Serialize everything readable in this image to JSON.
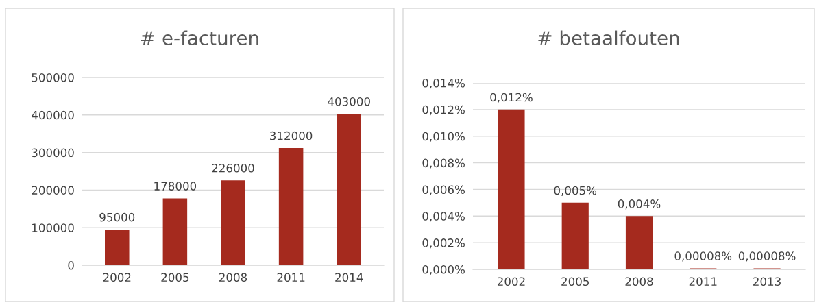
{
  "chart_data": [
    {
      "type": "bar",
      "title": "# e-facturen",
      "categories": [
        "2002",
        "2005",
        "2008",
        "2011",
        "2014"
      ],
      "values": [
        95000,
        178000,
        226000,
        312000,
        403000
      ],
      "color": "#a52a1e",
      "data_labels": true,
      "ylim": [
        0,
        500000
      ],
      "yticks": [
        0,
        100000,
        200000,
        300000,
        400000,
        500000
      ],
      "grid": "y",
      "legend": false
    },
    {
      "type": "bar",
      "title": "# betaalfouten",
      "categories": [
        "2002",
        "2005",
        "2008",
        "2011",
        "2013"
      ],
      "values": [
        0.012,
        0.005,
        0.004,
        8e-05,
        8e-05
      ],
      "color": "#a52a1e",
      "value_labels": [
        "0,012%",
        "0,005%",
        "0,004%",
        "0,00008%",
        "0,00008%"
      ],
      "ylim": [
        0,
        0.014
      ],
      "yticks": [
        {
          "value": 0,
          "label": "0,000%"
        },
        {
          "value": 0.002,
          "label": "0,002%"
        },
        {
          "value": 0.004,
          "label": "0,004%"
        },
        {
          "value": 0.006,
          "label": "0,006%"
        },
        {
          "value": 0.008,
          "label": "0,008%"
        },
        {
          "value": 0.01,
          "label": "0,010%"
        },
        {
          "value": 0.012,
          "label": "0,012%"
        },
        {
          "value": 0.014,
          "label": "0,014%"
        }
      ],
      "grid": "y",
      "legend": false
    }
  ]
}
